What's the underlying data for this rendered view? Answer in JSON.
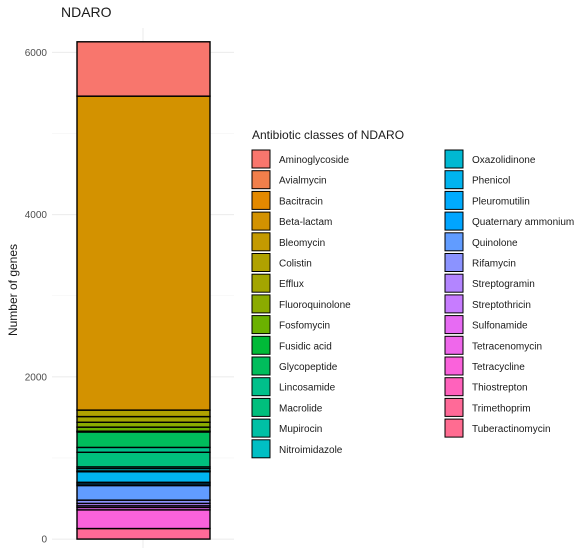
{
  "chart_data": {
    "type": "bar",
    "stacked": true,
    "title": "NDARO",
    "ylabel": "Number of genes",
    "xlabel": "",
    "ylim": [
      -110,
      6300
    ],
    "yticks": [
      0,
      2000,
      4000,
      6000
    ],
    "grid": true,
    "legend": {
      "title": "Antibiotic classes of NDARO",
      "placement": "right",
      "columns": 2
    },
    "series": [
      {
        "name": "Aminoglycoside",
        "value": 670,
        "color": "#F8766D"
      },
      {
        "name": "Avialmycin",
        "value": 0,
        "color": "#F17F4B"
      },
      {
        "name": "Bacitracin",
        "value": 0,
        "color": "#E38900"
      },
      {
        "name": "Beta-lactam",
        "value": 3870,
        "color": "#D39200"
      },
      {
        "name": "Bleomycin",
        "value": 0,
        "color": "#C49A00"
      },
      {
        "name": "Colistin",
        "value": 80,
        "color": "#B0A200"
      },
      {
        "name": "Efflux",
        "value": 70,
        "color": "#A3A500"
      },
      {
        "name": "Fluoroquinolone",
        "value": 60,
        "color": "#8BAB00"
      },
      {
        "name": "Fosfomycin",
        "value": 50,
        "color": "#6BB100"
      },
      {
        "name": "Fusidic acid",
        "value": 10,
        "color": "#00BA38"
      },
      {
        "name": "Glycopeptide",
        "value": 190,
        "color": "#00BD5C"
      },
      {
        "name": "Lincosamide",
        "value": 60,
        "color": "#00C08B"
      },
      {
        "name": "Macrolide",
        "value": 180,
        "color": "#00BF7D"
      },
      {
        "name": "Mupirocin",
        "value": 20,
        "color": "#00C0A5"
      },
      {
        "name": "Nitroimidazole",
        "value": 30,
        "color": "#00BFC4"
      },
      {
        "name": "Oxazolidinone",
        "value": 10,
        "color": "#00B8D2"
      },
      {
        "name": "Phenicol",
        "value": 130,
        "color": "#00B4EF"
      },
      {
        "name": "Pleuromutilin",
        "value": 20,
        "color": "#00ABFD"
      },
      {
        "name": "Quaternary ammonium",
        "value": 20,
        "color": "#00A5FF"
      },
      {
        "name": "Quinolone",
        "value": 180,
        "color": "#619CFF"
      },
      {
        "name": "Rifamycin",
        "value": 40,
        "color": "#8B93FF"
      },
      {
        "name": "Streptogramin",
        "value": 30,
        "color": "#B385FF"
      },
      {
        "name": "Streptothricin",
        "value": 20,
        "color": "#C77CFF"
      },
      {
        "name": "Sulfonamide",
        "value": 30,
        "color": "#E76BF3"
      },
      {
        "name": "Tetracenomycin",
        "value": 0,
        "color": "#EF67EB"
      },
      {
        "name": "Tetracycline",
        "value": 230,
        "color": "#FA62DB"
      },
      {
        "name": "Thiostrepton",
        "value": 0,
        "color": "#FF62BC"
      },
      {
        "name": "Trimethoprim",
        "value": 130,
        "color": "#FF6A98"
      },
      {
        "name": "Tuberactinomycin",
        "value": 0,
        "color": "#FF6C91"
      }
    ]
  }
}
